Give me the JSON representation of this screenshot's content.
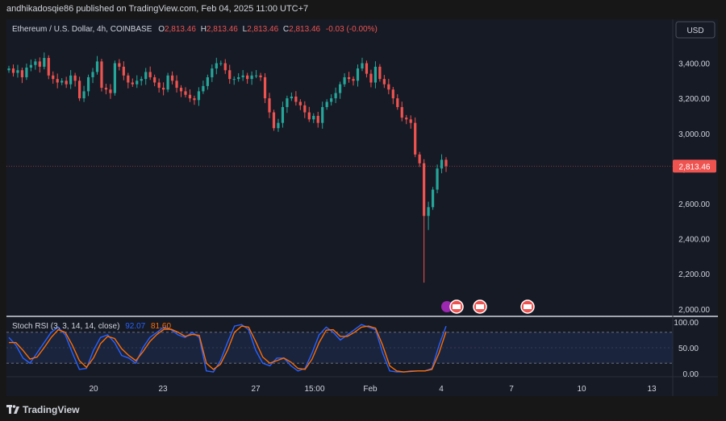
{
  "header": {
    "attribution": "andhikadosqie86 published on TradingView.com, Feb 04, 2025 11:00 UTC+7"
  },
  "legend": {
    "symbol": "Ethereum / U.S. Dollar, 4h, COINBASE",
    "o_label": "O",
    "o_value": "2,813.46",
    "h_label": "H",
    "h_value": "2,813.46",
    "l_label": "L",
    "l_value": "2,813.46",
    "c_label": "C",
    "c_value": "2,813.46",
    "change": "-0.03 (-0.00%)"
  },
  "currency_button": "USD",
  "last_price_tag": "2,813.46",
  "indicator": {
    "name": "Stoch RSI (3, 3, 14, 14, close)",
    "k_value": "92.07",
    "d_value": "81.60"
  },
  "footer": {
    "brand": "TradingView"
  },
  "colors": {
    "up": "#26a69a",
    "down": "#ef5350",
    "k_line": "#2962ff",
    "d_line": "#ff6d00",
    "band_fill": "#1c2a47",
    "price_tag": "#ef5350"
  },
  "chart_data": [
    {
      "type": "candlestick",
      "interval": "4h",
      "y_ticks": [
        "3,400.00",
        "3,200.00",
        "3,000.00",
        "2,800.00",
        "2,600.00",
        "2,400.00",
        "2,200.00",
        "2,000.00"
      ],
      "y_tick_values": [
        3400,
        3200,
        3000,
        2800,
        2600,
        2400,
        2200,
        2000
      ],
      "ylim": [
        1990,
        3540
      ],
      "x_ticks": [
        "20",
        "23",
        "27",
        "15:00",
        "Feb",
        "4",
        "7",
        "10",
        "13"
      ],
      "last_price": 2813.46,
      "close_approx": [
        3370,
        3345,
        3360,
        3320,
        3375,
        3390,
        3410,
        3380,
        3430,
        3330,
        3310,
        3290,
        3300,
        3280,
        3330,
        3300,
        3200,
        3240,
        3320,
        3350,
        3410,
        3260,
        3250,
        3230,
        3400,
        3380,
        3330,
        3290,
        3280,
        3300,
        3310,
        3350,
        3320,
        3290,
        3260,
        3250,
        3330,
        3300,
        3260,
        3240,
        3220,
        3200,
        3190,
        3240,
        3270,
        3320,
        3370,
        3400,
        3400,
        3360,
        3310,
        3310,
        3320,
        3330,
        3310,
        3330,
        3330,
        3320,
        3200,
        3120,
        3030,
        3060,
        3150,
        3200,
        3210,
        3180,
        3160,
        3120,
        3080,
        3100,
        3060,
        3150,
        3180,
        3200,
        3230,
        3280,
        3320,
        3310,
        3300,
        3370,
        3400,
        3340,
        3290,
        3380,
        3310,
        3280,
        3250,
        3200,
        3150,
        3090,
        3080,
        3060,
        2880,
        2830,
        2530,
        2580,
        2680,
        2800,
        2850,
        2813.46
      ],
      "series": [
        {
          "name": "Stoch RSI (3, 3, 14, 14, close)",
          "values": [
            70,
            55,
            30,
            20,
            40,
            60,
            80,
            90,
            75,
            40,
            8,
            10,
            45,
            70,
            75,
            60,
            35,
            30,
            20,
            50,
            70,
            80,
            90,
            85,
            75,
            70,
            80,
            70,
            5,
            3,
            25,
            60,
            92,
            95,
            85,
            45,
            20,
            15,
            30,
            30,
            15,
            5,
            10,
            40,
            75,
            90,
            80,
            65,
            75,
            85,
            95,
            90,
            85,
            40,
            5,
            3,
            3,
            5,
            5,
            5,
            10,
            55,
            92.07
          ]
        },
        {
          "name": "Stoch RSI (3, 3, 14, 14, close)",
          "values": [
            60,
            60,
            45,
            28,
            32,
            50,
            70,
            85,
            80,
            55,
            25,
            12,
            30,
            58,
            72,
            68,
            48,
            35,
            25,
            42,
            62,
            76,
            86,
            86,
            80,
            72,
            76,
            74,
            20,
            8,
            18,
            45,
            80,
            92,
            90,
            62,
            32,
            20,
            25,
            30,
            22,
            10,
            8,
            28,
            60,
            84,
            85,
            72,
            72,
            80,
            90,
            92,
            88,
            55,
            15,
            5,
            3,
            4,
            5,
            5,
            8,
            40,
            81.6
          ]
        }
      ],
      "indicator_ticks": [
        "100.00",
        "50.00",
        "0.00"
      ],
      "indicator_ylim": [
        0,
        100
      ],
      "indicator_bands": [
        80,
        20
      ]
    }
  ]
}
